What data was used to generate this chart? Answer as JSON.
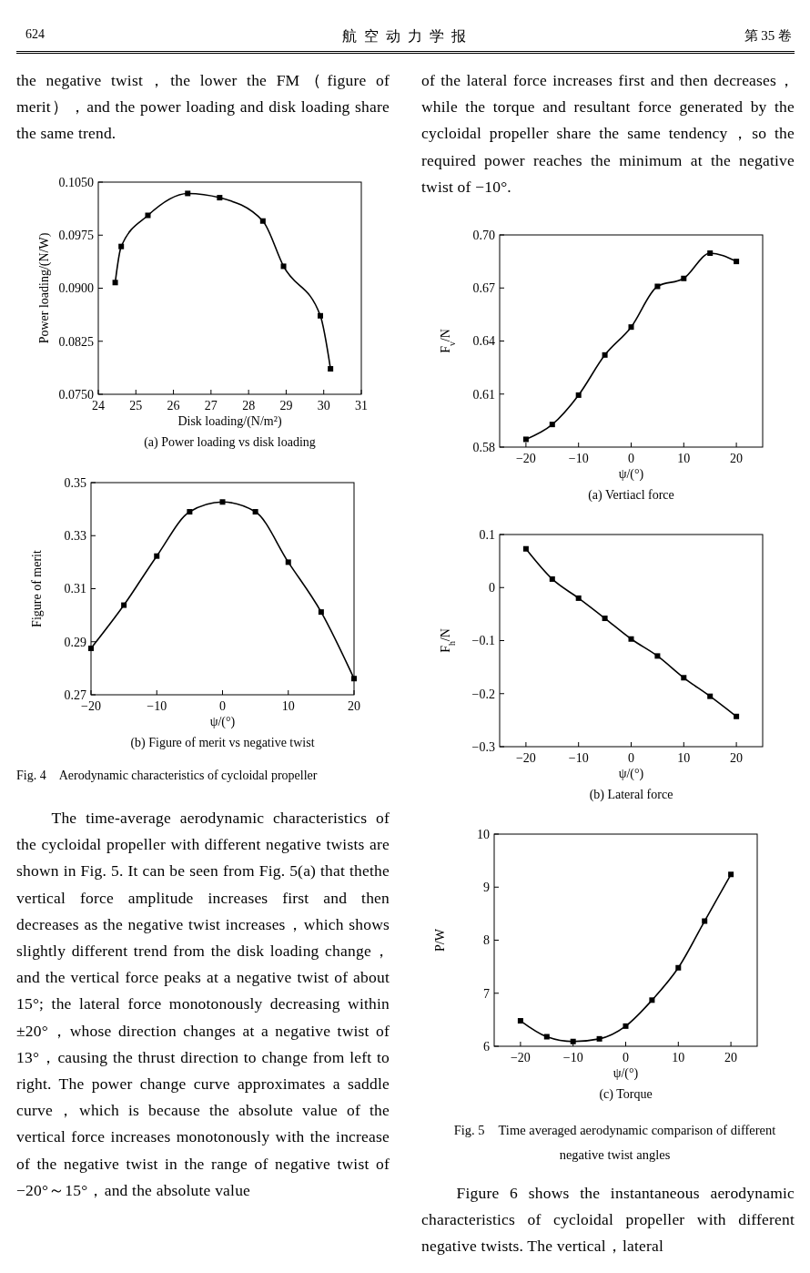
{
  "chart_data": [
    {
      "type": "line",
      "title": "(a) Power loading vs disk loading",
      "xlabel": "Disk loading/(N/m²)",
      "ylabel": "Power loading/(N/W)",
      "marker": "square",
      "line_style": "solid",
      "x": [
        24.45,
        24.61,
        25.32,
        26.38,
        27.23,
        28.38,
        28.93,
        29.91,
        30.18
      ],
      "series": [
        {
          "color": "#000000",
          "values": [
            0.0908,
            0.0959,
            0.1003,
            0.1034,
            0.1028,
            0.0995,
            0.0931,
            0.0861,
            0.0786
          ]
        }
      ],
      "xlim": [
        24,
        31
      ],
      "xticks": [
        24,
        25,
        26,
        27,
        28,
        29,
        30,
        31
      ],
      "ylim": [
        0.075,
        0.105
      ],
      "yticks": [
        {
          "value": 0.075,
          "label": "0.0750"
        },
        {
          "value": 0.0825,
          "label": "0.0825"
        },
        {
          "value": 0.09,
          "label": "0.0900"
        },
        {
          "value": 0.0975,
          "label": "0.0975"
        },
        {
          "value": 0.105,
          "label": "0.1050"
        }
      ],
      "annotations": [
        "624",
        "航 空 动 力 学 报",
        "第 35 卷",
        "the negative twist，the lower the FM（figure of merit），and the power loading and disk loading share the same trend."
      ]
    },
    {
      "type": "line",
      "title": "(b) Figure of merit vs negative twist",
      "xlabel": "ψ/(°)",
      "ylabel": "Figure of merit",
      "marker": "square",
      "line_style": "solid",
      "x": [
        -20,
        -15,
        -10,
        -5,
        0,
        5,
        10,
        15,
        20
      ],
      "series": [
        {
          "color": "#000000",
          "values": [
            0.2875,
            0.3038,
            0.3223,
            0.339,
            0.3427,
            0.339,
            0.32,
            0.3012,
            0.2761
          ]
        }
      ],
      "xlim": [
        -20,
        20
      ],
      "xticks": [
        -20,
        -10,
        0,
        10,
        20
      ],
      "ylim": [
        0.27,
        0.35
      ],
      "yticks": [
        0.27,
        0.29,
        0.31,
        0.33,
        0.35
      ],
      "annotations": [
        "Fig. 4　Aerodynamic characteristics of cycloidal propeller",
        "The time-average aerodynamic characteristics of the cycloidal propeller with different negative twists are shown in Fig. 5. It can be seen from Fig. 5(a) that thethe vertical force amplitude increases first and then decreases as the negative twist increases，which shows slightly different trend from the disk loading change，and the vertical force peaks at a negative twist of about 15°; the lateral force monotonously decreasing within ±20°，whose direction changes at a negative twist of 13°，causing the thrust direction to change from left to right. The power change curve approximates a saddle curve，which is because the absolute value of the vertical force increases monotonously with the increase of the negative twist in the range of negative twist of −20°～15°，and the absolute value"
      ]
    },
    {
      "type": "line",
      "title": "(a) Vertiacl force",
      "xlabel": "ψ/(°)",
      "ylabel": "F$_{v}$/N",
      "marker": "square",
      "line_style": "solid",
      "x": [
        -20,
        -15,
        -10,
        -5,
        0,
        5,
        10,
        15,
        20
      ],
      "series": [
        {
          "color": "#000000",
          "values": [
            0.5844,
            0.5928,
            0.6094,
            0.6321,
            0.6479,
            0.6709,
            0.6754,
            0.6897,
            0.685
          ]
        }
      ],
      "xlim": [
        -25,
        25
      ],
      "xticks": [
        -20,
        -10,
        0,
        10,
        20
      ],
      "ylim": [
        0.58,
        0.7
      ],
      "yticks": [
        0.58,
        0.61,
        0.64,
        0.67,
        {
          "value": 0.7,
          "label": "0.70"
        }
      ],
      "annotations": [
        "of the lateral force increases first and then decreases，while the torque and resultant force generated by the cycloidal propeller share the same tendency，so the required power reaches the minimum at the negative twist of −10°."
      ]
    },
    {
      "type": "line",
      "title": "(b) Lateral force",
      "xlabel": "ψ/(°)",
      "ylabel": "F$_{h}$/N",
      "marker": "square",
      "line_style": "solid",
      "x": [
        -20,
        -15,
        -10,
        -5,
        0,
        5,
        10,
        15,
        20
      ],
      "series": [
        {
          "color": "#000000",
          "values": [
            0.073,
            0.016,
            -0.02,
            -0.058,
            -0.097,
            -0.129,
            -0.17,
            -0.205,
            -0.243
          ]
        }
      ],
      "xlim": [
        -25,
        25
      ],
      "xticks": [
        -20,
        -10,
        0,
        10,
        20
      ],
      "ylim": [
        -0.3,
        0.1
      ],
      "yticks": [
        -0.3,
        -0.2,
        -0.1,
        0,
        0.1
      ]
    },
    {
      "type": "line",
      "title": "(c) Torque",
      "xlabel": "ψ/(°)",
      "ylabel": "P/W",
      "marker": "square",
      "line_style": "solid",
      "x": [
        -20,
        -15,
        -10,
        -5,
        0,
        5,
        10,
        15,
        20
      ],
      "series": [
        {
          "color": "#000000",
          "values": [
            6.48,
            6.18,
            6.09,
            6.14,
            6.38,
            6.87,
            7.48,
            8.36,
            9.24
          ]
        }
      ],
      "xlim": [
        -25,
        25
      ],
      "xticks": [
        -20,
        -10,
        0,
        10,
        20
      ],
      "ylim": [
        6,
        10
      ],
      "yticks": [
        6,
        7,
        8,
        9,
        10
      ],
      "annotations": [
        "Fig. 5　Time averaged aerodynamic comparison of different negative twist angles",
        "Figure 6 shows the instantaneous aerodynamic characteristics of cycloidal propeller with different negative twists. The vertical，lateral"
      ]
    }
  ]
}
